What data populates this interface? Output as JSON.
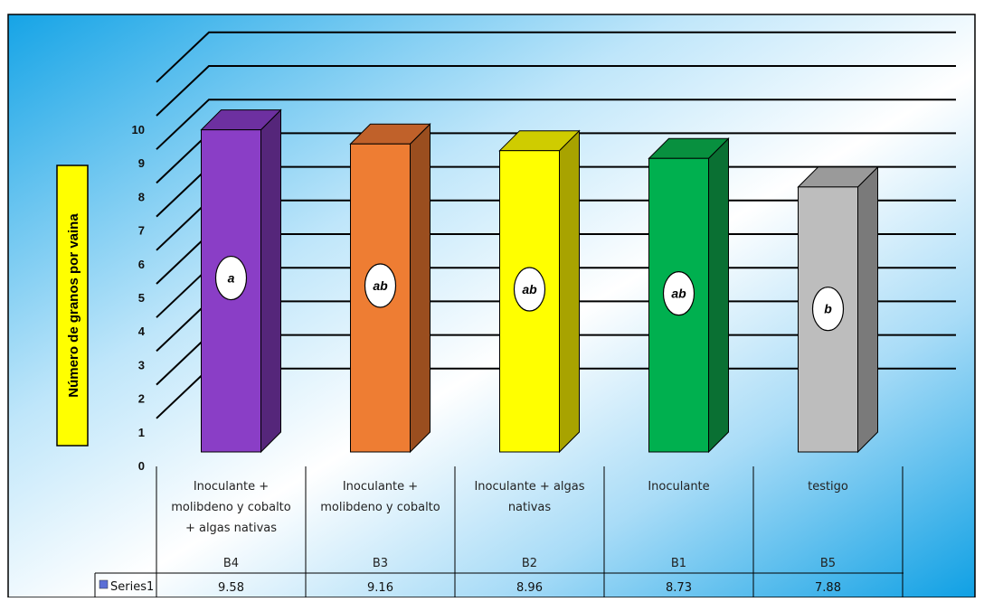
{
  "chart_data": {
    "type": "bar",
    "title": "",
    "xlabel": "",
    "ylabel": "Número de granos por vaina",
    "ylim": [
      0,
      10
    ],
    "yticks": [
      0,
      1,
      2,
      3,
      4,
      5,
      6,
      7,
      8,
      9,
      10
    ],
    "grid": true,
    "three_d": true,
    "categories": [
      {
        "label_lines": [
          "Inoculante +",
          "molibdeno y cobalto",
          "+ algas nativas"
        ],
        "code": "B4"
      },
      {
        "label_lines": [
          "Inoculante +",
          "molibdeno y cobalto"
        ],
        "code": "B3"
      },
      {
        "label_lines": [
          "Inoculante + algas",
          "nativas"
        ],
        "code": "B2"
      },
      {
        "label_lines": [
          "Inoculante"
        ],
        "code": "B1"
      },
      {
        "label_lines": [
          "testigo"
        ],
        "code": "B5"
      }
    ],
    "series": [
      {
        "name": "Series1",
        "values": [
          9.58,
          9.16,
          8.96,
          8.73,
          7.88
        ]
      }
    ],
    "value_labels": [
      "9.58",
      "9.16",
      "8.96",
      "8.73",
      "7.88"
    ],
    "significance_letters": [
      "a",
      "ab",
      "ab",
      "ab",
      "b"
    ],
    "bar_colors": [
      {
        "front": "#8a3ec6",
        "side": "#55267a",
        "top": "#6d30a0"
      },
      {
        "front": "#ee7d33",
        "side": "#9a4e1f",
        "top": "#c0612a"
      },
      {
        "front": "#ffff00",
        "side": "#a8a300",
        "top": "#cfcc00"
      },
      {
        "front": "#00b04f",
        "side": "#0a7033",
        "top": "#08903f"
      },
      {
        "front": "#bdbdbd",
        "side": "#7a7a7a",
        "top": "#9a9a9a"
      }
    ],
    "data_table": true,
    "legend_key_color": "#5b6fd6",
    "ylabel_background": "#ffff00"
  }
}
